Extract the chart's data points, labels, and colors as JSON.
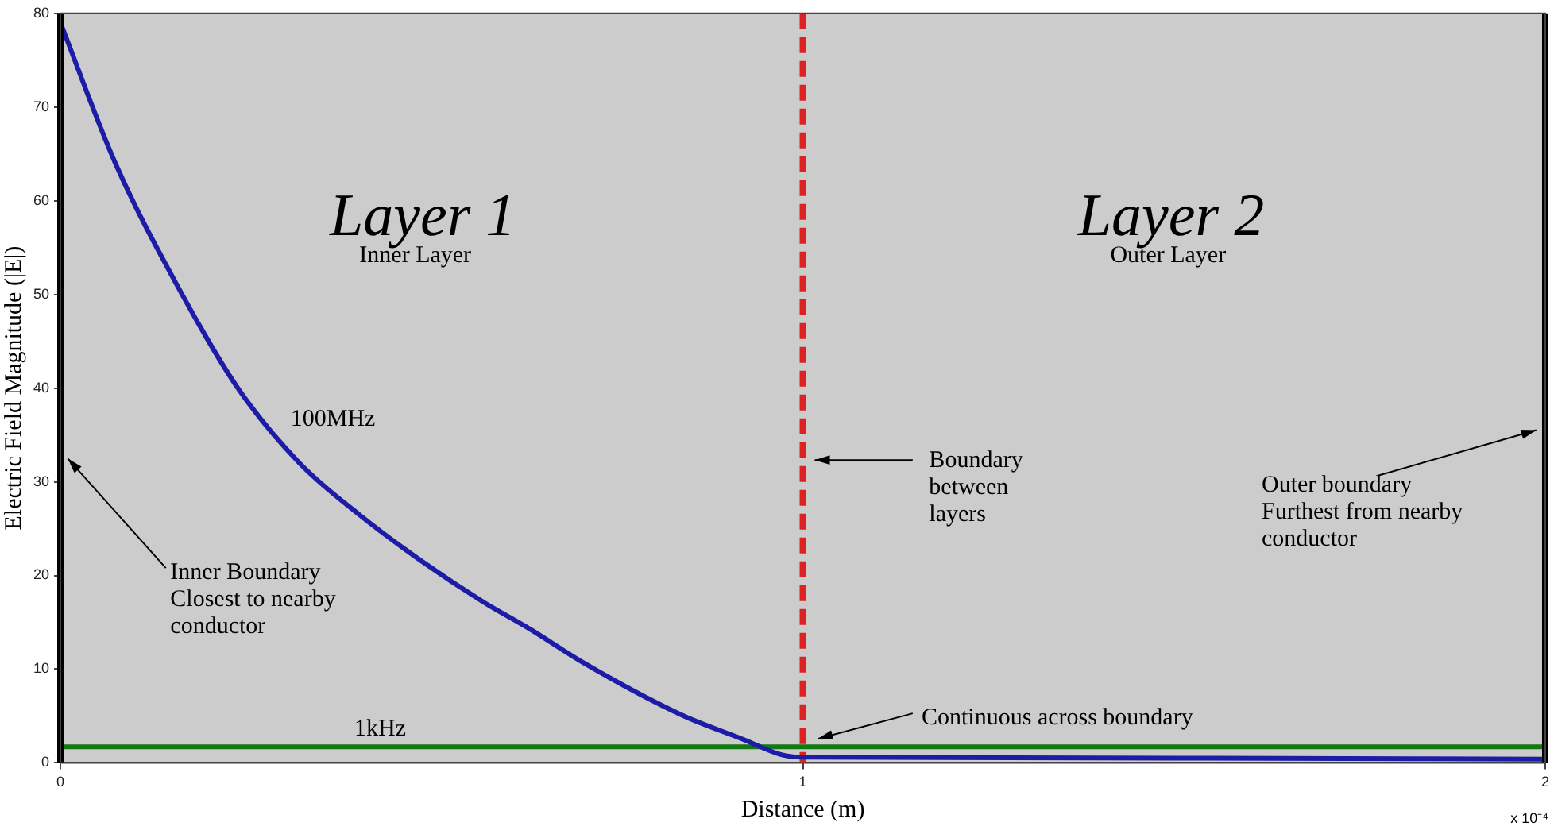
{
  "chart_data": {
    "type": "line",
    "xlabel": "Distance (m)",
    "ylabel": "Electric Field Magnitude (|E|)",
    "xlim": [
      0,
      2
    ],
    "xticks": [
      0,
      1,
      2
    ],
    "ylim": [
      0,
      80
    ],
    "yticks": [
      0,
      10,
      20,
      30,
      40,
      50,
      60,
      70,
      80
    ],
    "series": [
      {
        "name": "100MHz",
        "color": "#1c1ca6",
        "x": [
          0,
          0.074,
          0.157,
          0.239,
          0.322,
          0.404,
          0.487,
          0.569,
          0.634,
          0.704,
          0.837,
          0.92,
          0.97,
          1,
          1.5,
          2
        ],
        "values": [
          79,
          64,
          51,
          40,
          32,
          26.4,
          21.5,
          17.2,
          14.2,
          10.7,
          5.1,
          2.5,
          0.9,
          0.6,
          0.5,
          0.4
        ]
      },
      {
        "name": "1kHz",
        "color": "#117a11",
        "x": [
          0,
          1,
          2
        ],
        "values": [
          1.7,
          1.7,
          1.7
        ]
      }
    ],
    "ref_lines": [
      {
        "axis": "x",
        "value": 1,
        "color": "#dd2222",
        "line_style": "dashed"
      }
    ],
    "annotations": [
      "Layer 1",
      "Inner Layer",
      "Layer 2",
      "Outer Layer",
      "Inner Boundary\nClosest to nearby\nconductor",
      "Boundary\nbetween\nlayers",
      "Outer boundary\nFurthest from nearby\nconductor",
      "Continuous across boundary",
      "x 10⁻⁴"
    ],
    "line_style": "solid",
    "marker": "none",
    "legend": false
  }
}
